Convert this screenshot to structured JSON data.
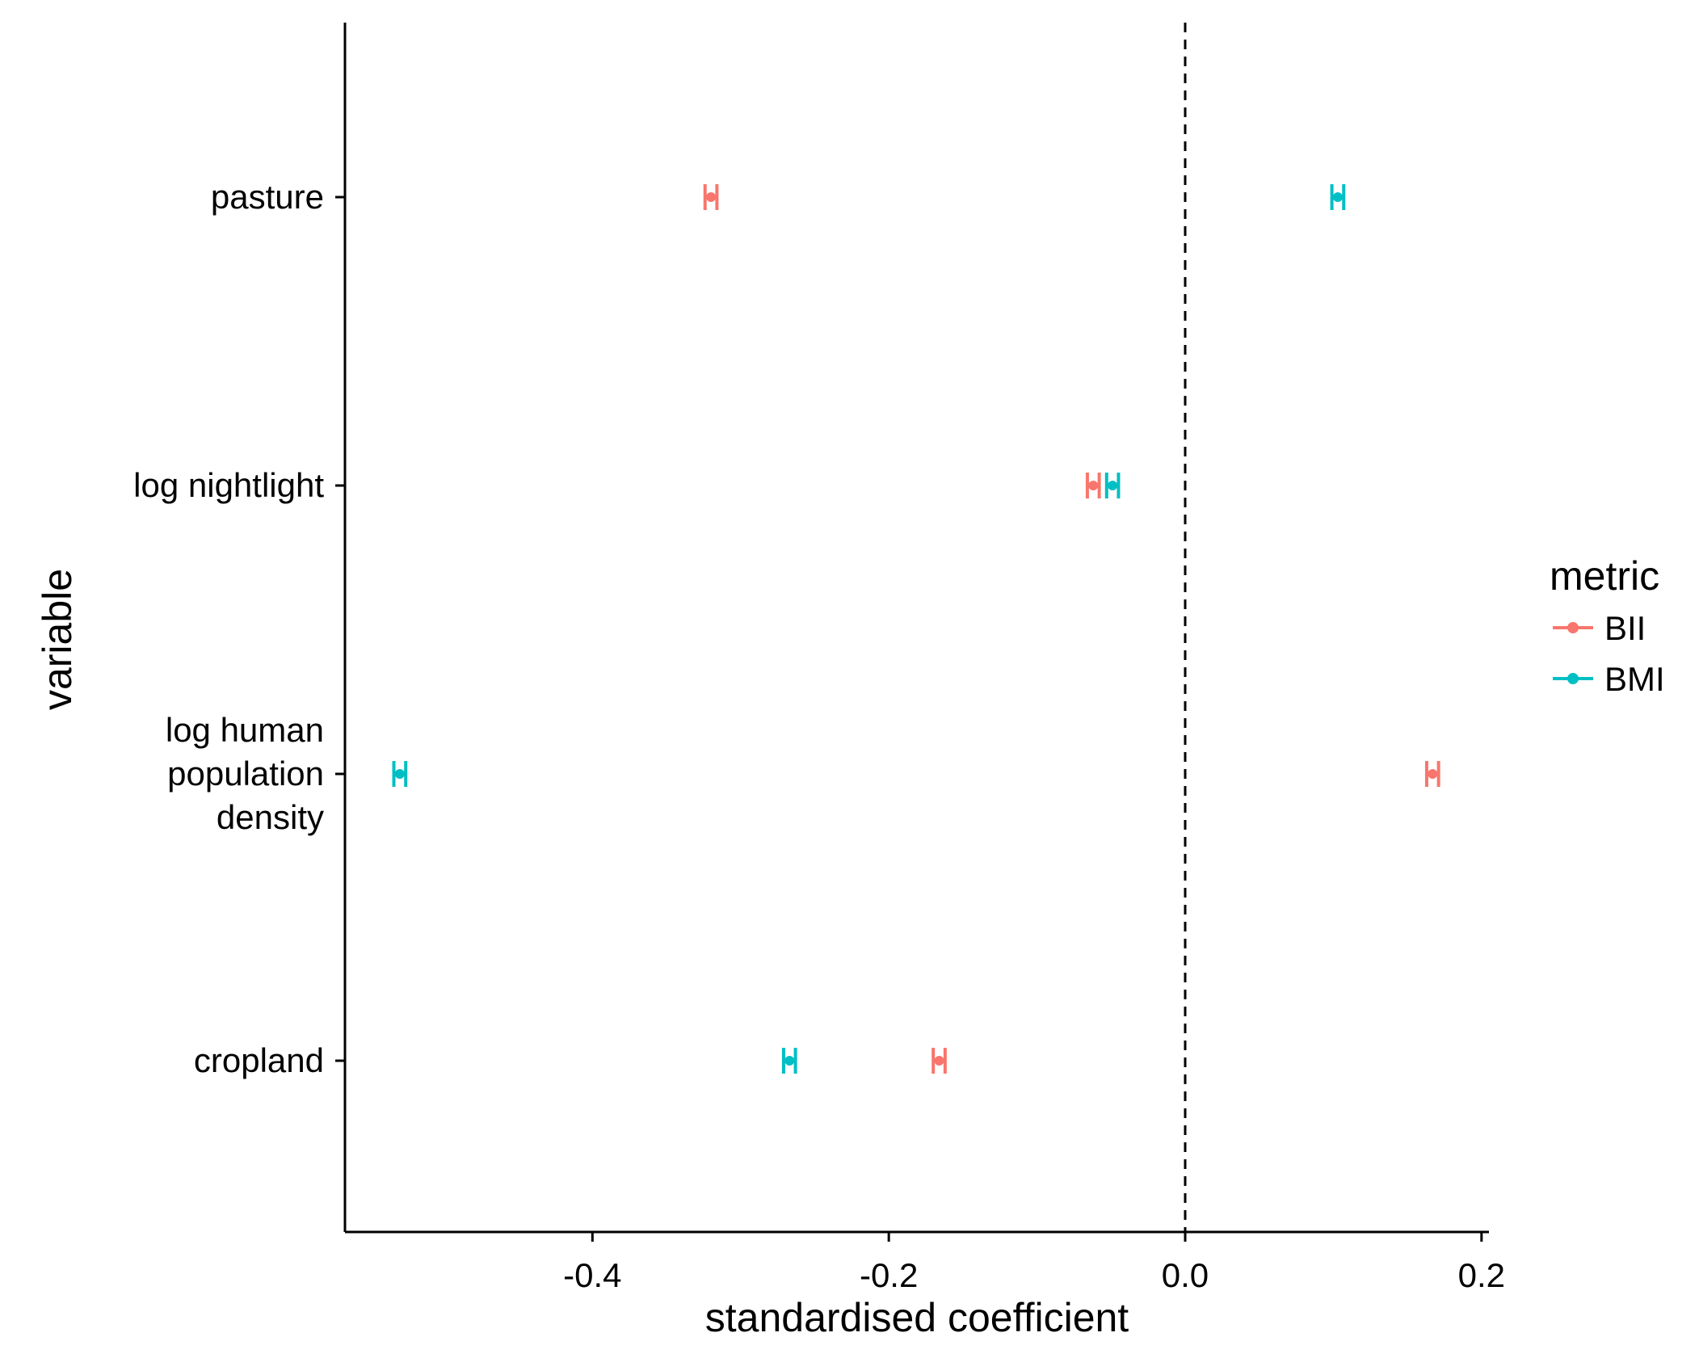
{
  "chart_data": {
    "type": "errorbar",
    "xlabel": "standardised coefficient",
    "ylabel": "variable",
    "xlim": [
      -0.567,
      0.205
    ],
    "x_ticks": [
      -0.4,
      -0.2,
      0.0,
      0.2
    ],
    "x_tick_labels": [
      "-0.4",
      "-0.2",
      "0.0",
      "0.2"
    ],
    "categories": [
      {
        "key": "pasture",
        "lines": [
          "pasture"
        ]
      },
      {
        "key": "log nightlight",
        "lines": [
          "log nightlight"
        ]
      },
      {
        "key": "log human population density",
        "lines": [
          "log human",
          "population",
          "density"
        ]
      },
      {
        "key": "cropland",
        "lines": [
          "cropland"
        ]
      }
    ],
    "reference_line": {
      "x": 0.0,
      "style": "dashed"
    },
    "legend": {
      "title": "metric",
      "placement": "right"
    },
    "series": [
      {
        "name": "BII",
        "color": "#F8766D",
        "values": [
          -0.32,
          -0.062,
          0.167,
          -0.166
        ],
        "lower": [
          -0.324,
          -0.066,
          0.163,
          -0.17
        ],
        "upper": [
          -0.316,
          -0.058,
          0.171,
          -0.162
        ]
      },
      {
        "name": "BMI",
        "color": "#00BFC4",
        "values": [
          0.103,
          -0.049,
          -0.53,
          -0.267
        ],
        "lower": [
          0.099,
          -0.053,
          -0.534,
          -0.271
        ],
        "upper": [
          0.107,
          -0.045,
          -0.526,
          -0.263
        ]
      }
    ]
  }
}
